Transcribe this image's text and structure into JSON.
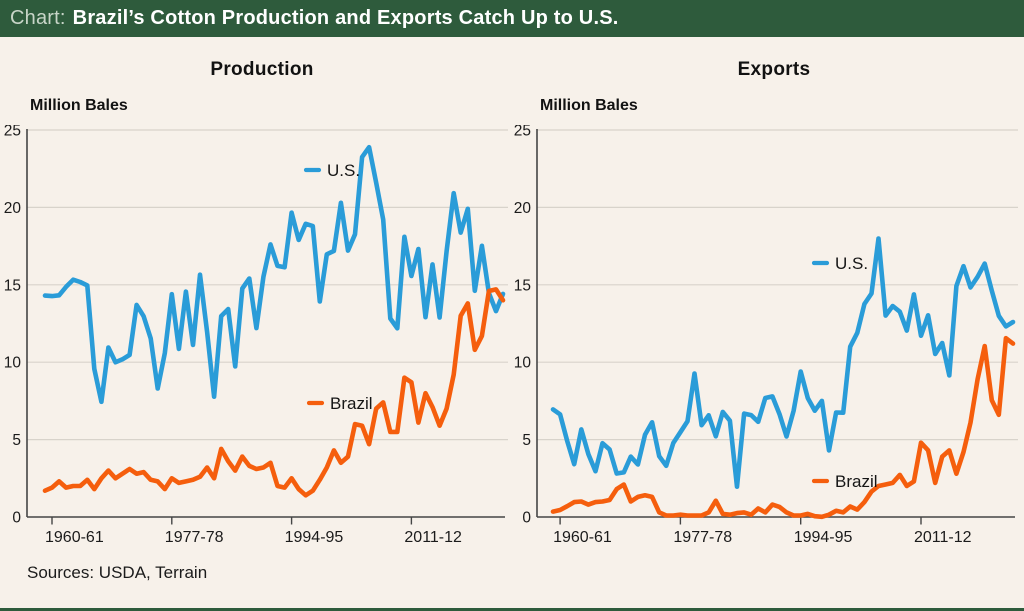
{
  "header": {
    "prefix": "Chart:",
    "title": "Brazil’s Cotton Production and Exports Catch Up to U.S."
  },
  "footer": {
    "sources": "Sources: USDA, Terrain"
  },
  "colors": {
    "background": "#f7f1ea",
    "header_bg": "#2e5b3c",
    "header_prefix_text": "#c8d5c8",
    "header_title_text": "#ffffff",
    "us_line": "#2a9cd8",
    "brazil_line": "#f55e0d",
    "gridline": "#d8d3cb",
    "axis": "#454545",
    "text": "#1b1b1b"
  },
  "chart_data": [
    {
      "type": "line",
      "title": "Production",
      "ylabel": "Million Bales",
      "ylim": [
        0,
        25
      ],
      "y_ticks": [
        0,
        5,
        10,
        15,
        20,
        25
      ],
      "grid": "horizontal",
      "legend_position": "inline",
      "x_tick_labels": [
        "1960-61",
        "1977-78",
        "1994-95",
        "2011-12"
      ],
      "x_tick_indices": [
        1,
        18,
        35,
        52
      ],
      "x_seasons_start": "1959-60",
      "x_seasons_end": "2024-25",
      "series": [
        {
          "name": "U.S.",
          "color": "#2a9cd8",
          "values": [
            14.3,
            14.27,
            14.32,
            14.87,
            15.33,
            15.18,
            14.96,
            9.57,
            7.44,
            10.95,
            10.0,
            10.19,
            10.47,
            13.7,
            12.97,
            11.54,
            8.3,
            10.58,
            14.39,
            10.86,
            14.56,
            11.12,
            15.65,
            11.96,
            7.77,
            12.98,
            13.43,
            9.73,
            14.76,
            15.41,
            12.2,
            15.51,
            17.61,
            16.22,
            16.13,
            19.66,
            17.9,
            18.94,
            18.79,
            13.92,
            16.97,
            17.19,
            20.3,
            17.21,
            18.26,
            23.25,
            23.89,
            21.59,
            19.21,
            12.82,
            12.19,
            18.1,
            15.57,
            17.31,
            12.91,
            16.32,
            12.89,
            17.17,
            20.92,
            18.37,
            19.91,
            14.61,
            17.52,
            14.47,
            13.3,
            14.41
          ]
        },
        {
          "name": "Brazil",
          "color": "#f55e0d",
          "values": [
            1.7,
            1.9,
            2.3,
            1.9,
            2.0,
            2.0,
            2.4,
            1.8,
            2.5,
            3.0,
            2.5,
            2.8,
            3.1,
            2.8,
            2.9,
            2.4,
            2.3,
            1.8,
            2.5,
            2.2,
            2.3,
            2.4,
            2.6,
            3.2,
            2.5,
            4.4,
            3.6,
            3.0,
            3.9,
            3.3,
            3.1,
            3.2,
            3.5,
            2.0,
            1.9,
            2.5,
            1.8,
            1.4,
            1.7,
            2.4,
            3.2,
            4.3,
            3.5,
            3.9,
            6.0,
            5.9,
            4.7,
            7.0,
            7.4,
            5.5,
            5.5,
            9.0,
            8.7,
            6.1,
            8.0,
            7.1,
            5.9,
            7.0,
            9.2,
            13.0,
            13.8,
            10.8,
            11.7,
            14.6,
            14.7,
            14.0
          ]
        }
      ]
    },
    {
      "type": "line",
      "title": "Exports",
      "ylabel": "Million Bales",
      "ylim": [
        0,
        25
      ],
      "y_ticks": [
        0,
        5,
        10,
        15,
        20,
        25
      ],
      "grid": "horizontal",
      "legend_position": "inline",
      "x_tick_labels": [
        "1960-61",
        "1977-78",
        "1994-95",
        "2011-12"
      ],
      "x_tick_indices": [
        1,
        18,
        35,
        52
      ],
      "x_seasons_start": "1959-60",
      "x_seasons_end": "2024-25",
      "series": [
        {
          "name": "U.S.",
          "color": "#2a9cd8",
          "values": [
            6.95,
            6.63,
            4.91,
            3.41,
            5.66,
            4.06,
            2.96,
            4.77,
            4.36,
            2.81,
            2.88,
            3.9,
            3.39,
            5.31,
            6.12,
            3.93,
            3.31,
            4.78,
            5.48,
            6.18,
            9.27,
            5.93,
            6.57,
            5.21,
            6.79,
            6.22,
            1.96,
            6.68,
            6.58,
            6.15,
            7.69,
            7.79,
            6.65,
            5.2,
            6.86,
            9.4,
            7.68,
            6.87,
            7.5,
            4.3,
            6.75,
            6.74,
            11.0,
            11.9,
            13.76,
            14.44,
            17.99,
            13.01,
            13.63,
            13.26,
            12.04,
            14.38,
            11.71,
            13.03,
            10.53,
            11.24,
            9.15,
            14.92,
            16.2,
            14.83,
            15.52,
            16.37,
            14.62,
            13.0,
            12.31,
            12.6
          ]
        },
        {
          "name": "Brazil",
          "color": "#f55e0d",
          "values": [
            0.35,
            0.45,
            0.7,
            0.96,
            1.0,
            0.8,
            0.96,
            1.0,
            1.1,
            1.8,
            2.1,
            1.0,
            1.3,
            1.4,
            1.3,
            0.3,
            0.1,
            0.1,
            0.15,
            0.1,
            0.1,
            0.1,
            0.3,
            1.05,
            0.2,
            0.15,
            0.25,
            0.3,
            0.15,
            0.55,
            0.3,
            0.8,
            0.65,
            0.3,
            0.1,
            0.1,
            0.2,
            0.05,
            0.01,
            0.15,
            0.4,
            0.3,
            0.68,
            0.48,
            0.96,
            1.64,
            2.0,
            2.1,
            2.2,
            2.72,
            2.0,
            2.3,
            4.8,
            4.31,
            2.2,
            3.9,
            4.3,
            2.8,
            4.2,
            6.1,
            8.9,
            11.04,
            7.54,
            6.6,
            11.55,
            11.2
          ]
        }
      ]
    }
  ]
}
